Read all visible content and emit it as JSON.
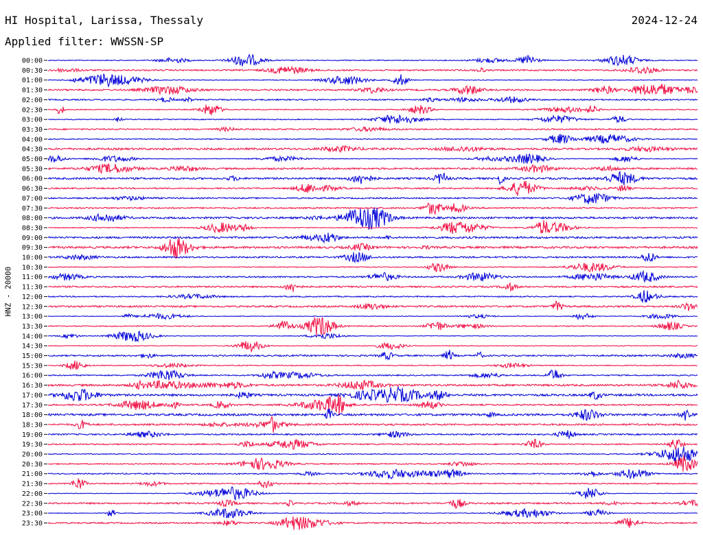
{
  "header": {
    "station": "HI Hospital, Larissa, Thessaly",
    "date": "2024-12-24",
    "filter": "Applied filter: WWSSN-SP"
  },
  "axis": {
    "channel_label": "HNZ - 20000"
  },
  "colors": {
    "trace_a": "#0b0bd9",
    "trace_b": "#f0184a",
    "background": "#ffffff",
    "text": "#000000"
  },
  "rows": [
    {
      "time": "00:00",
      "color": "trace_a"
    },
    {
      "time": "00:30",
      "color": "trace_b"
    },
    {
      "time": "01:00",
      "color": "trace_a"
    },
    {
      "time": "01:30",
      "color": "trace_b"
    },
    {
      "time": "02:00",
      "color": "trace_a"
    },
    {
      "time": "02:30",
      "color": "trace_b"
    },
    {
      "time": "03:00",
      "color": "trace_a"
    },
    {
      "time": "03:30",
      "color": "trace_b"
    },
    {
      "time": "04:00",
      "color": "trace_a"
    },
    {
      "time": "04:30",
      "color": "trace_b"
    },
    {
      "time": "05:00",
      "color": "trace_a"
    },
    {
      "time": "05:30",
      "color": "trace_b"
    },
    {
      "time": "06:00",
      "color": "trace_a"
    },
    {
      "time": "06:30",
      "color": "trace_b"
    },
    {
      "time": "07:00",
      "color": "trace_a"
    },
    {
      "time": "07:30",
      "color": "trace_b"
    },
    {
      "time": "08:00",
      "color": "trace_a"
    },
    {
      "time": "08:30",
      "color": "trace_b"
    },
    {
      "time": "09:00",
      "color": "trace_a"
    },
    {
      "time": "09:30",
      "color": "trace_b"
    },
    {
      "time": "10:00",
      "color": "trace_a"
    },
    {
      "time": "10:30",
      "color": "trace_b"
    },
    {
      "time": "11:00",
      "color": "trace_a"
    },
    {
      "time": "11:30",
      "color": "trace_b"
    },
    {
      "time": "12:00",
      "color": "trace_a"
    },
    {
      "time": "12:30",
      "color": "trace_b"
    },
    {
      "time": "13:00",
      "color": "trace_a"
    },
    {
      "time": "13:30",
      "color": "trace_b"
    },
    {
      "time": "14:00",
      "color": "trace_a"
    },
    {
      "time": "14:30",
      "color": "trace_b"
    },
    {
      "time": "15:00",
      "color": "trace_a"
    },
    {
      "time": "15:30",
      "color": "trace_b"
    },
    {
      "time": "16:00",
      "color": "trace_a"
    },
    {
      "time": "16:30",
      "color": "trace_b"
    },
    {
      "time": "17:00",
      "color": "trace_a"
    },
    {
      "time": "17:30",
      "color": "trace_b"
    },
    {
      "time": "18:00",
      "color": "trace_a"
    },
    {
      "time": "18:30",
      "color": "trace_b"
    },
    {
      "time": "19:00",
      "color": "trace_a"
    },
    {
      "time": "19:30",
      "color": "trace_b"
    },
    {
      "time": "20:00",
      "color": "trace_a"
    },
    {
      "time": "20:30",
      "color": "trace_b"
    },
    {
      "time": "21:00",
      "color": "trace_a"
    },
    {
      "time": "21:30",
      "color": "trace_b"
    },
    {
      "time": "22:00",
      "color": "trace_a"
    },
    {
      "time": "22:30",
      "color": "trace_b"
    },
    {
      "time": "23:00",
      "color": "trace_a"
    },
    {
      "time": "23:30",
      "color": "trace_b"
    }
  ]
}
